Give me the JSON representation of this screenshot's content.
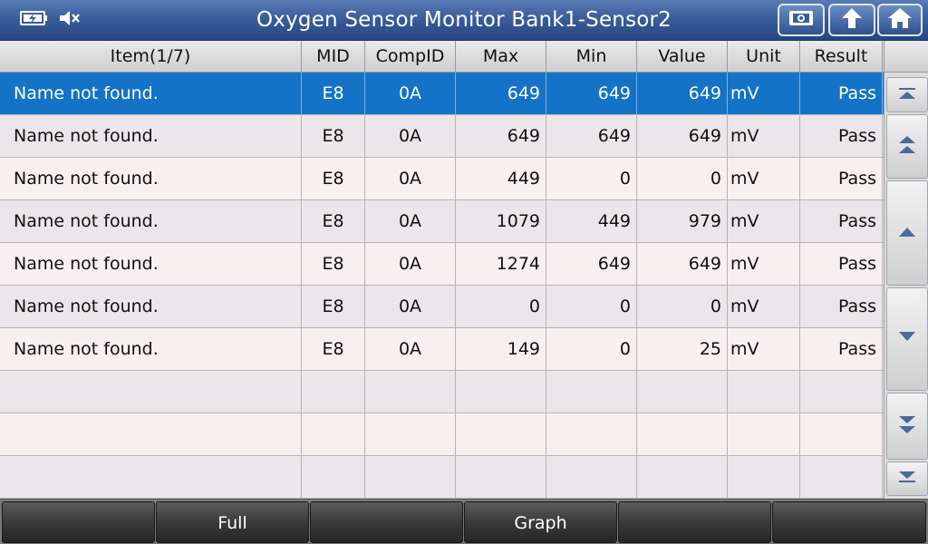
{
  "header": {
    "title": "Oxygen Sensor Monitor Bank1-Sensor2",
    "status_icons": [
      "battery-charging-icon",
      "speaker-muted-icon"
    ],
    "buttons": [
      "screenshot-icon",
      "back-arrow-icon",
      "home-icon"
    ]
  },
  "table": {
    "columns": [
      "Item(1/7)",
      "MID",
      "CompID",
      "Max",
      "Min",
      "Value",
      "Unit",
      "Result"
    ],
    "rows": [
      {
        "item": "Name not found.",
        "mid": "E8",
        "compid": "0A",
        "max": "649",
        "min": "649",
        "value": "649",
        "unit": "mV",
        "result": "Pass"
      },
      {
        "item": "Name not found.",
        "mid": "E8",
        "compid": "0A",
        "max": "649",
        "min": "649",
        "value": "649",
        "unit": "mV",
        "result": "Pass"
      },
      {
        "item": "Name not found.",
        "mid": "E8",
        "compid": "0A",
        "max": "449",
        "min": "0",
        "value": "0",
        "unit": "mV",
        "result": "Pass"
      },
      {
        "item": "Name not found.",
        "mid": "E8",
        "compid": "0A",
        "max": "1079",
        "min": "449",
        "value": "979",
        "unit": "mV",
        "result": "Pass"
      },
      {
        "item": "Name not found.",
        "mid": "E8",
        "compid": "0A",
        "max": "1274",
        "min": "649",
        "value": "649",
        "unit": "mV",
        "result": "Pass"
      },
      {
        "item": "Name not found.",
        "mid": "E8",
        "compid": "0A",
        "max": "0",
        "min": "0",
        "value": "0",
        "unit": "mV",
        "result": "Pass"
      },
      {
        "item": "Name not found.",
        "mid": "E8",
        "compid": "0A",
        "max": "149",
        "min": "0",
        "value": "25",
        "unit": "mV",
        "result": "Pass"
      }
    ],
    "selected_row": 0,
    "empty_rows": 3
  },
  "scroll": {
    "buttons": [
      "scroll-top-icon",
      "page-up-icon",
      "line-up-icon",
      "line-down-icon",
      "page-down-icon",
      "scroll-bottom-icon"
    ]
  },
  "footer": {
    "buttons": [
      "",
      "Full",
      "",
      "Graph",
      "",
      ""
    ]
  },
  "colors": {
    "header": "#3a5d9c",
    "selected_row": "#1473c7",
    "footer_button": "#3a3a3a"
  }
}
